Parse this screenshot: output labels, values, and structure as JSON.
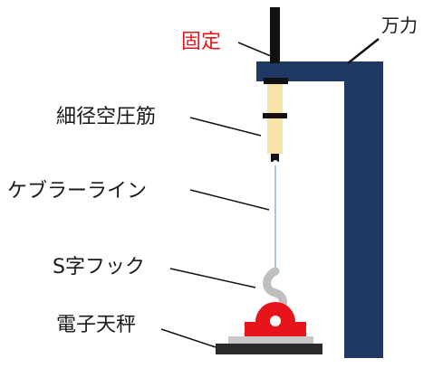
{
  "labels": {
    "fixed": "固定",
    "universal": "万力",
    "muscle": "細径空圧筋",
    "kevlar": "ケブラーライン",
    "hook": "S字フック",
    "scale": "電子天秤"
  },
  "colors": {
    "frame": "#1f3864",
    "fixed_label": "#e8141c",
    "label_text": "#1a1a1a",
    "muscle": "#f5e3a8",
    "line": "#a9c4e6",
    "hook": "#bfbfbf",
    "holder": "#e8141c",
    "scale_top": "#c8c8c8",
    "scale_base": "#2b2b2b"
  },
  "icons": [
    "rod",
    "clamp-frame",
    "pneumatic-muscle",
    "kevlar-line",
    "s-hook",
    "electronic-scale"
  ]
}
